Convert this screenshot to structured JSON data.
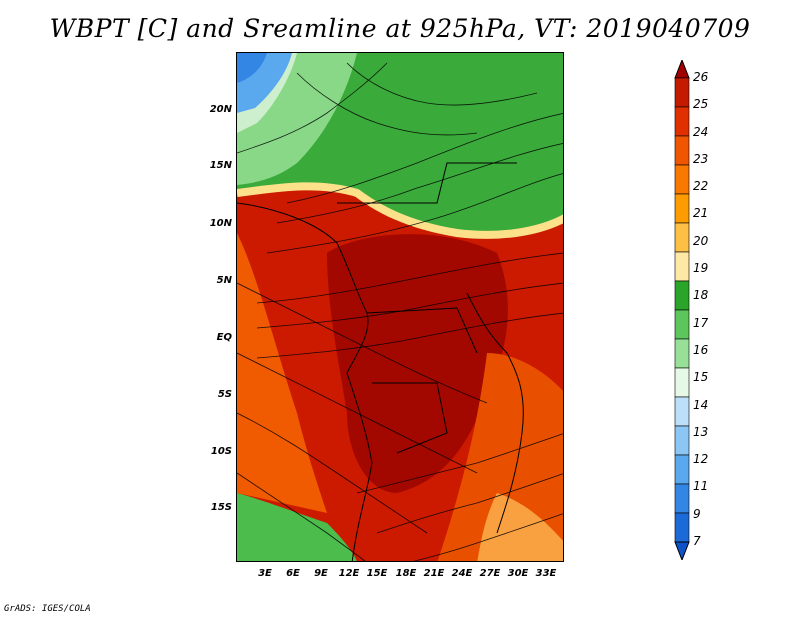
{
  "title": "WBPT [C] and Sreamline at 925hPa, VT: 2019040709",
  "axes": {
    "y_ticks": [
      "20N",
      "15N",
      "10N",
      "5N",
      "EQ",
      "5S",
      "10S",
      "15S"
    ],
    "x_ticks": [
      "3E",
      "6E",
      "9E",
      "12E",
      "15E",
      "18E",
      "21E",
      "24E",
      "27E",
      "30E",
      "33E"
    ]
  },
  "colorbar": {
    "labels": [
      "26",
      "25",
      "24",
      "23",
      "22",
      "21",
      "20",
      "19",
      "18",
      "17",
      "16",
      "15",
      "14",
      "13",
      "12",
      "11",
      "9",
      "7"
    ],
    "colors": [
      "#a00000",
      "#c41a00",
      "#e03000",
      "#f05500",
      "#f87800",
      "#fc9c00",
      "#fdc045",
      "#fde8a5",
      "#2aa52a",
      "#5cc55c",
      "#98e098",
      "#e6f8e6",
      "#bde0fa",
      "#8cc6f5",
      "#5aa8ee",
      "#3486e4",
      "#1c6ad8",
      "#0e52c8"
    ]
  },
  "credit": "GrADS: IGES/COLA"
}
